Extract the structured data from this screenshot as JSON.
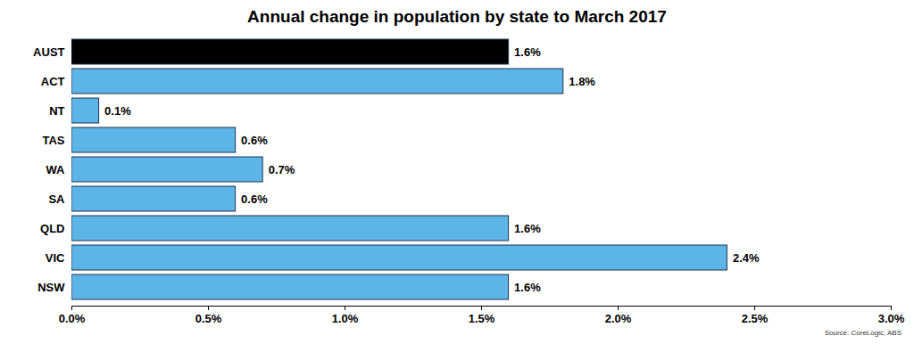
{
  "chart_data": {
    "type": "bar",
    "orientation": "horizontal",
    "title": "Annual change in population by state to March 2017",
    "caption": "Source: CoreLogic, ABS",
    "categories": [
      "AUST",
      "ACT",
      "NT",
      "TAS",
      "WA",
      "SA",
      "QLD",
      "VIC",
      "NSW"
    ],
    "values": [
      1.6,
      1.8,
      0.1,
      0.6,
      0.7,
      0.6,
      1.6,
      2.4,
      1.6
    ],
    "value_labels": [
      "1.6%",
      "1.8%",
      "0.1%",
      "0.6%",
      "0.7%",
      "0.6%",
      "1.6%",
      "2.4%",
      "1.6%"
    ],
    "colors": [
      "#000000",
      "#5db4e6",
      "#5db4e6",
      "#5db4e6",
      "#5db4e6",
      "#5db4e6",
      "#5db4e6",
      "#5db4e6",
      "#5db4e6"
    ],
    "data_labels": true,
    "grid": false,
    "xlim": [
      0,
      3
    ],
    "xticks": [
      {
        "value": 0,
        "label": "0.0%"
      },
      {
        "value": 0.5,
        "label": "0.5%"
      },
      {
        "value": 1,
        "label": "1.0%"
      },
      {
        "value": 1.5,
        "label": "1.5%"
      },
      {
        "value": 2,
        "label": "2.0%"
      },
      {
        "value": 2.5,
        "label": "2.5%"
      },
      {
        "value": 3,
        "label": "3.0%"
      }
    ]
  }
}
